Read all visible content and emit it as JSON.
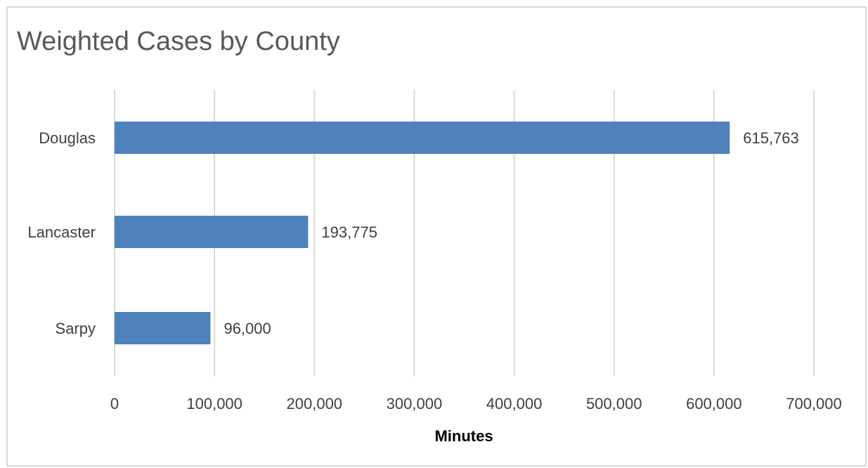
{
  "chart_data": {
    "type": "bar",
    "orientation": "horizontal",
    "title": "Weighted Cases by County",
    "xlabel": "Minutes",
    "ylabel": "",
    "categories": [
      "Douglas",
      "Lancaster",
      "Sarpy"
    ],
    "values": [
      615763,
      193775,
      96000
    ],
    "data_labels": [
      "615,763",
      "193,775",
      "96,000"
    ],
    "xlim": [
      0,
      700000
    ],
    "x_ticks": [
      0,
      100000,
      200000,
      300000,
      400000,
      500000,
      600000,
      700000
    ],
    "x_tick_labels": [
      "0",
      "100,000",
      "200,000",
      "300,000",
      "400,000",
      "500,000",
      "600,000",
      "700,000"
    ],
    "grid": "vertical",
    "legend": "none",
    "bar_color": "#4f81bd"
  }
}
